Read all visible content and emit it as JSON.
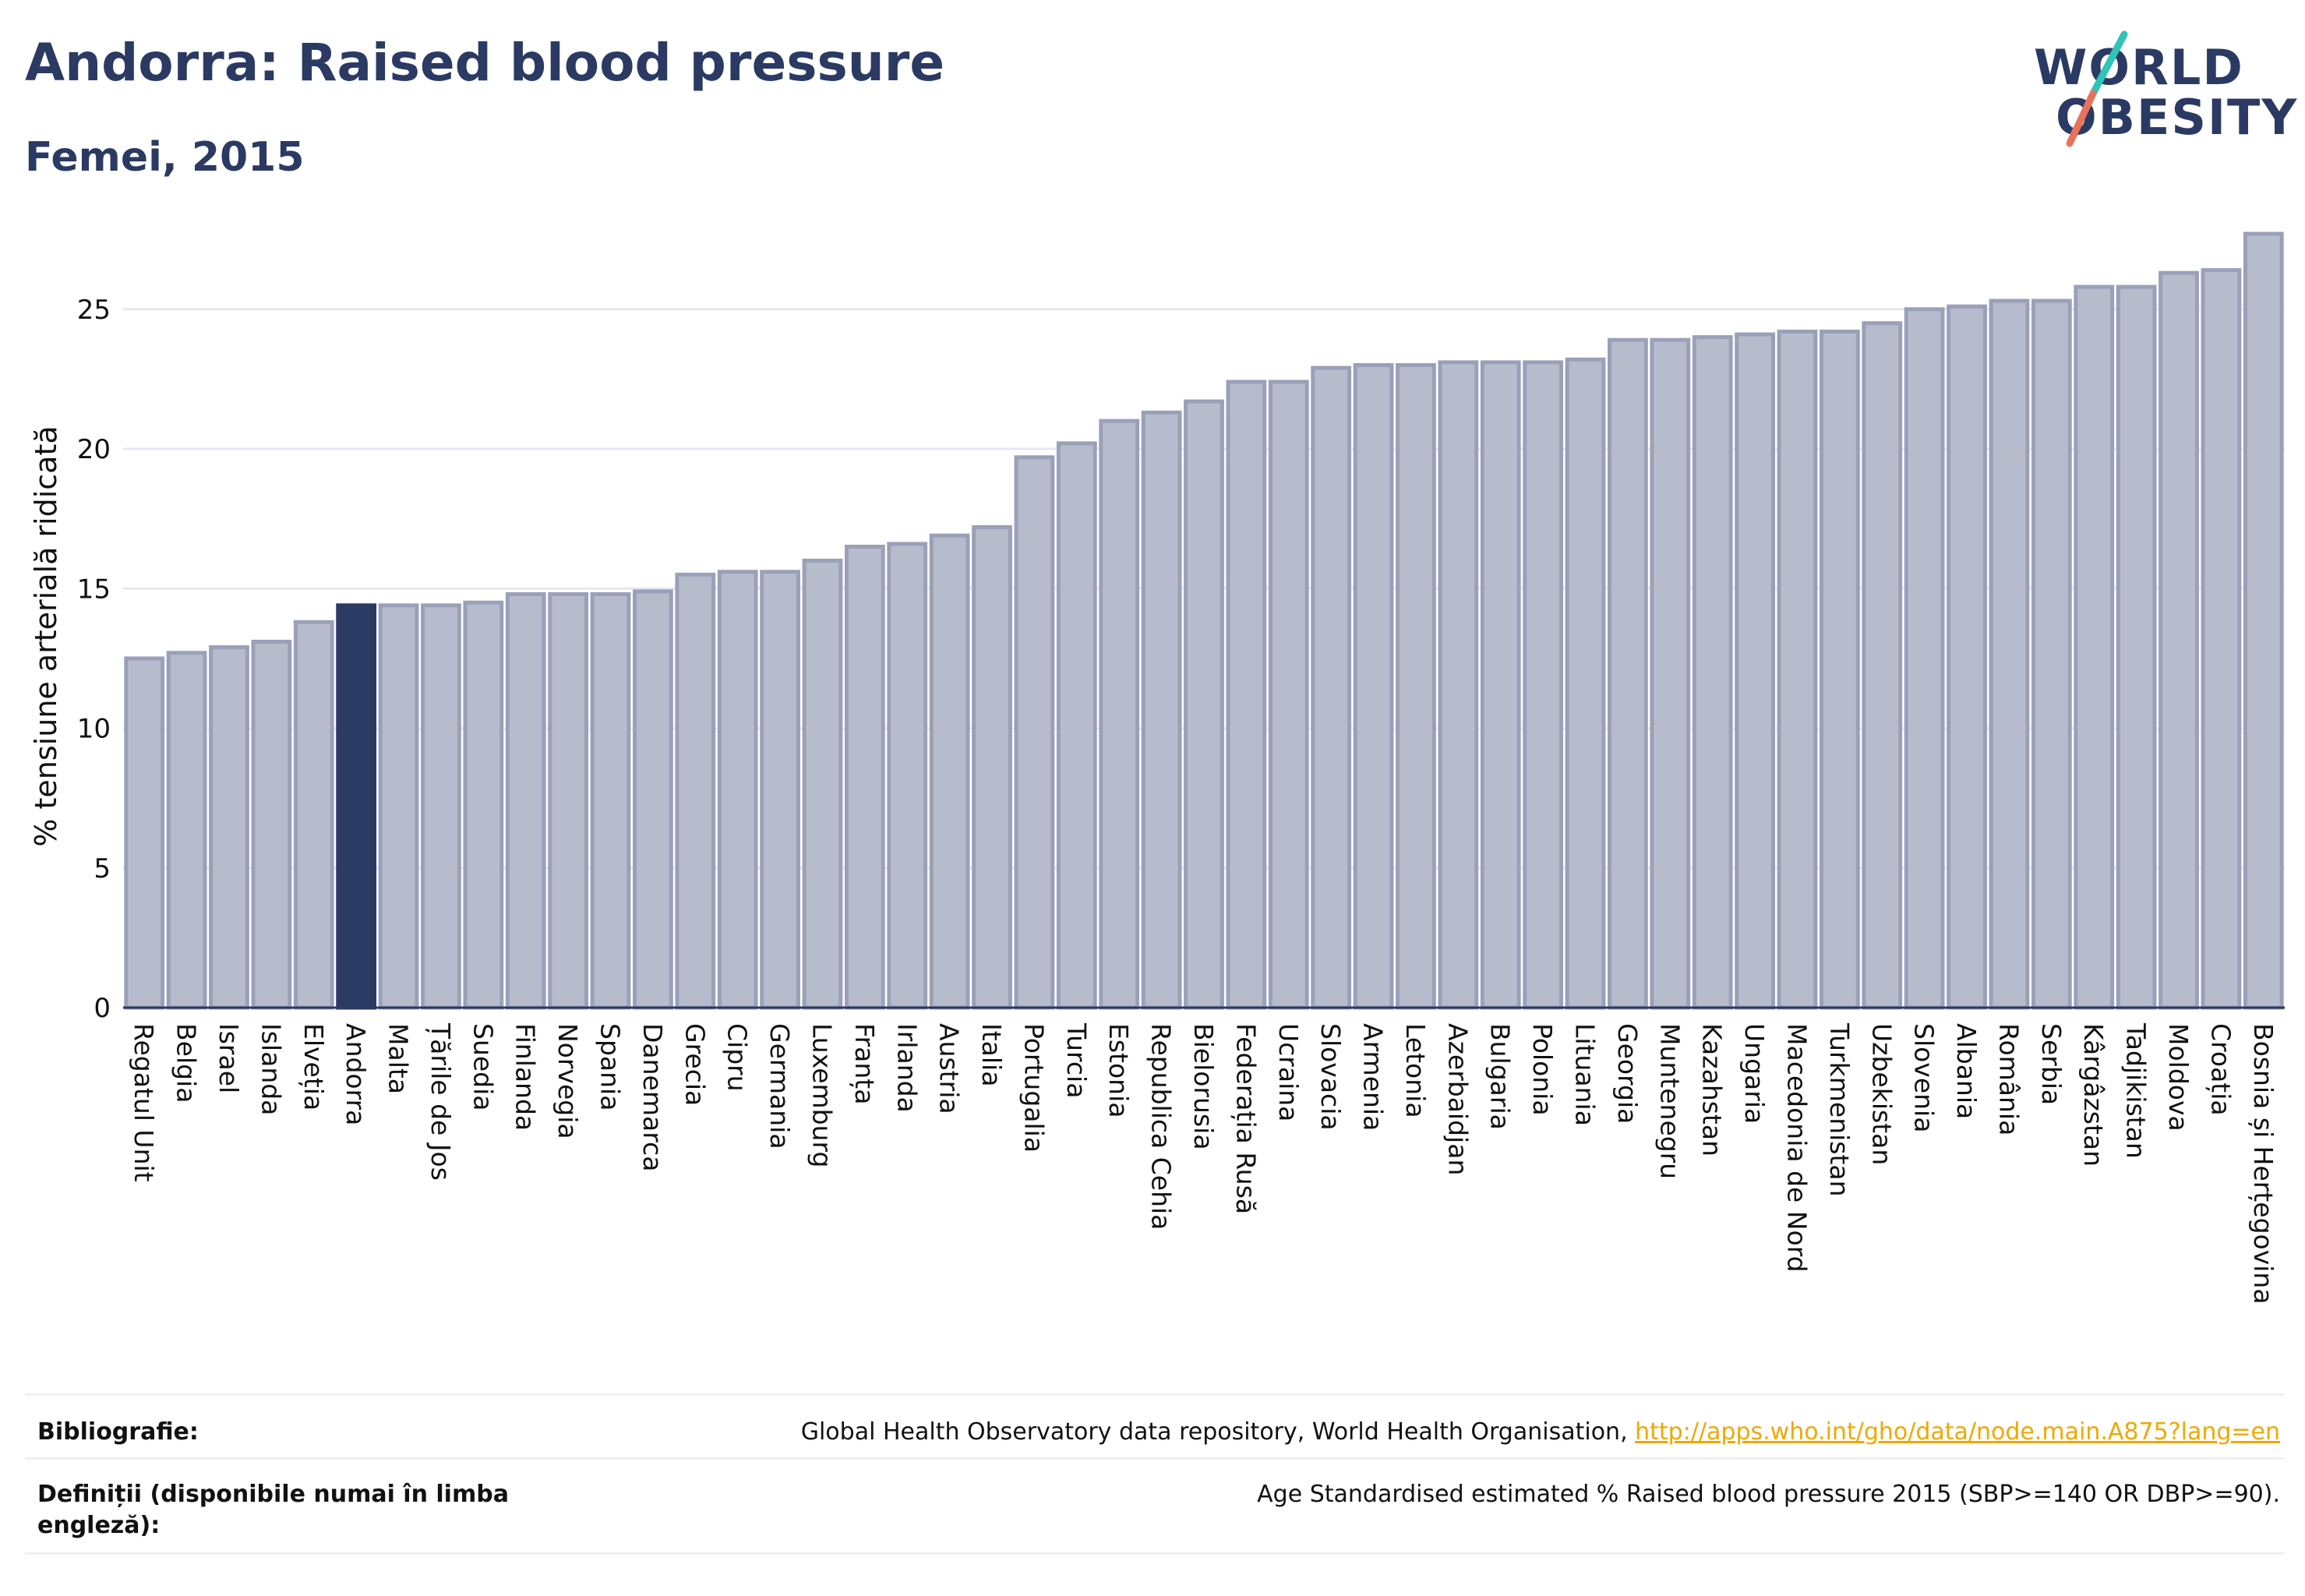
{
  "header": {
    "title": "Andorra: Raised blood pressure",
    "subtitle": "Femei, 2015"
  },
  "logo": {
    "line1": "WORLD",
    "line2": "OBESITY",
    "accent_top": "#2ec4b6",
    "accent_bottom": "#e8735a",
    "text_color": "#2b3a63"
  },
  "chart_data": {
    "type": "bar",
    "title": "",
    "xlabel": "",
    "ylabel": "% tensiune arterială ridicată",
    "ylim": [
      0,
      27.7
    ],
    "yticks": [
      0,
      5,
      10,
      15,
      20,
      25
    ],
    "grid": true,
    "highlight": "Andorra",
    "colors": {
      "bar": "#b7bccd",
      "bar_stroke": "#9aa0b8",
      "highlight": "#2b3a63",
      "axis": "#2b3a63",
      "grid": "#e6e8ef"
    },
    "categories": [
      "Regatul Unit",
      "Belgia",
      "Israel",
      "Islanda",
      "Elveția",
      "Andorra",
      "Malta",
      "Țările de Jos",
      "Suedia",
      "Finlanda",
      "Norvegia",
      "Spania",
      "Danemarca",
      "Grecia",
      "Cipru",
      "Germania",
      "Luxemburg",
      "Franța",
      "Irlanda",
      "Austria",
      "Italia",
      "Portugalia",
      "Turcia",
      "Estonia",
      "Republica Cehia",
      "Bielorusia",
      "Federația Rusă",
      "Ucraina",
      "Slovacia",
      "Armenia",
      "Letonia",
      "Azerbaidjan",
      "Bulgaria",
      "Polonia",
      "Lituania",
      "Georgia",
      "Muntenegru",
      "Kazahstan",
      "Ungaria",
      "Macedonia de Nord",
      "Turkmenistan",
      "Uzbekistan",
      "Slovenia",
      "Albania",
      "România",
      "Serbia",
      "Kârgâzstan",
      "Tadjikistan",
      "Moldova",
      "Croația",
      "Bosnia și Herțegovina"
    ],
    "values": [
      12.5,
      12.7,
      12.9,
      13.1,
      13.8,
      14.4,
      14.4,
      14.4,
      14.5,
      14.8,
      14.8,
      14.8,
      14.9,
      15.5,
      15.6,
      15.6,
      16.0,
      16.5,
      16.6,
      16.9,
      17.2,
      19.7,
      20.2,
      21.0,
      21.3,
      21.7,
      22.4,
      22.4,
      22.9,
      23.0,
      23.0,
      23.1,
      23.1,
      23.1,
      23.2,
      23.9,
      23.9,
      24.0,
      24.1,
      24.2,
      24.2,
      24.5,
      25.0,
      25.1,
      25.3,
      25.3,
      25.8,
      25.8,
      26.3,
      26.4,
      27.7
    ]
  },
  "footer": {
    "bibliography_label": "Bibliografie:",
    "bibliography_text": "Global Health Observatory data repository, World Health Organisation, ",
    "bibliography_link": "http://apps.who.int/gho/data/node.main.A875?lang=en",
    "definitions_label": "Definiții (disponibile numai în limba engleză):",
    "definitions_text": "Age Standardised estimated % Raised blood pressure 2015 (SBP>=140 OR DBP>=90)."
  }
}
